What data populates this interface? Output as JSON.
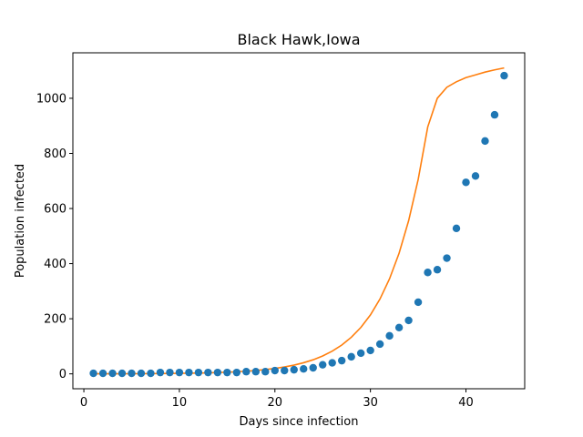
{
  "chart_data": {
    "type": "scatter",
    "title": "Black Hawk,Iowa",
    "xlabel": "Days since infection",
    "ylabel": "Population infected",
    "xlim": [
      -1.15,
      46.15
    ],
    "ylim": [
      -54,
      1165
    ],
    "xticks": [
      0,
      10,
      20,
      30,
      40
    ],
    "yticks": [
      0,
      200,
      400,
      600,
      800,
      1000
    ],
    "grid": false,
    "series": [
      {
        "kind": "points",
        "color": "#1f77b4",
        "x": [
          1,
          2,
          3,
          4,
          5,
          6,
          7,
          8,
          9,
          10,
          11,
          12,
          13,
          14,
          15,
          16,
          17,
          18,
          19,
          20,
          21,
          22,
          23,
          24,
          25,
          26,
          27,
          28,
          29,
          30,
          31,
          32,
          33,
          34,
          35,
          36,
          37,
          38,
          39,
          40,
          41,
          42,
          43,
          44
        ],
        "y": [
          2,
          2,
          2,
          2,
          2,
          2,
          2,
          5,
          5,
          5,
          5,
          5,
          5,
          5,
          5,
          5,
          8,
          8,
          8,
          12,
          12,
          15,
          18,
          22,
          33,
          40,
          48,
          62,
          75,
          85,
          108,
          138,
          168,
          194,
          260,
          368,
          378,
          420,
          528,
          695,
          718,
          845,
          940,
          1082
        ]
      },
      {
        "kind": "fit-curve",
        "color": "#ff7f0e",
        "x": [
          1,
          2,
          3,
          4,
          5,
          6,
          7,
          8,
          9,
          10,
          11,
          12,
          13,
          14,
          15,
          16,
          17,
          18,
          19,
          20,
          21,
          22,
          23,
          24,
          25,
          26,
          27,
          28,
          29,
          30,
          31,
          32,
          33,
          34,
          35,
          36,
          37,
          38,
          39,
          40,
          41,
          42,
          43,
          44
        ],
        "y": [
          0.2,
          0.3,
          0.3,
          0.4,
          0.5,
          0.7,
          0.9,
          1.1,
          1.4,
          1.8,
          2.3,
          2.9,
          3.7,
          4.7,
          6,
          7.6,
          9.6,
          12.2,
          15.5,
          19.7,
          25,
          31.7,
          40.3,
          51.1,
          64.9,
          82.4,
          104.6,
          132.8,
          168.6,
          214,
          271.7,
          344.9,
          437.9,
          555.9,
          705.8,
          896,
          1000,
          1040,
          1060,
          1075,
          1085,
          1095,
          1103,
          1110
        ]
      }
    ]
  }
}
